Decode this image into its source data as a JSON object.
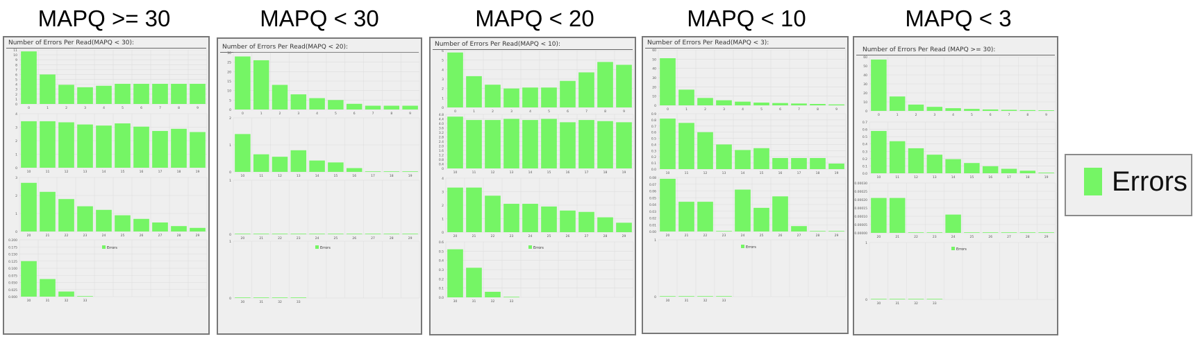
{
  "colors": {
    "bar": "#75f565",
    "grid": "#dcdcdc",
    "panel_bg": "#efefef",
    "axis_text": "#555555"
  },
  "column_titles": [
    "MAPQ >= 30",
    "MAPQ < 30",
    "MAPQ < 20",
    "MAPQ < 10",
    "MAPQ < 3"
  ],
  "outer_legend": {
    "label": "Errors"
  },
  "chart_data": [
    {
      "type": "bar",
      "title": "Number of Errors Per Read(MAPQ < 30):",
      "legend": "Errors",
      "rows": [
        {
          "categories": [
            "0",
            "1",
            "2",
            "3",
            "4",
            "5",
            "6",
            "7",
            "8",
            "9"
          ],
          "values": [
            10.7,
            6,
            3.9,
            3.4,
            3.7,
            4.1,
            4.1,
            4.1,
            4.1,
            4.1
          ],
          "ylim": [
            0,
            11
          ],
          "yticks": [
            "0",
            "1",
            "2",
            "3",
            "4",
            "5",
            "6",
            "7",
            "8",
            "9",
            "10",
            "11"
          ]
        },
        {
          "categories": [
            "10",
            "11",
            "12",
            "13",
            "14",
            "15",
            "16",
            "17",
            "18",
            "19"
          ],
          "values": [
            4.3,
            4.3,
            4.2,
            4.0,
            3.9,
            4.1,
            3.8,
            3.4,
            3.6,
            3.3
          ],
          "ylim": [
            0,
            5
          ],
          "yticks": [
            "0",
            "1",
            "2",
            "3",
            "4"
          ]
        },
        {
          "categories": [
            "20",
            "21",
            "22",
            "23",
            "24",
            "25",
            "26",
            "27",
            "28",
            "29"
          ],
          "values": [
            2.7,
            2.2,
            1.8,
            1.4,
            1.2,
            0.9,
            0.7,
            0.5,
            0.3,
            0.2
          ],
          "ylim": [
            0,
            3
          ],
          "yticks": [
            "0",
            "1",
            "2",
            "3"
          ]
        },
        {
          "categories": [
            "30",
            "31",
            "32",
            "33"
          ],
          "values": [
            0.125,
            0.062,
            0.018,
            0.002
          ],
          "ylim": [
            0,
            0.2
          ],
          "yticks": [
            "0.000",
            "0.025",
            "0.050",
            "0.075",
            "0.100",
            "0.125",
            "0.150",
            "0.175",
            "0.200"
          ]
        }
      ]
    },
    {
      "type": "bar",
      "title": "Number of Errors Per Read(MAPQ < 20):",
      "legend": "Errors",
      "rows": [
        {
          "categories": [
            "0",
            "1",
            "2",
            "3",
            "4",
            "5",
            "6",
            "7",
            "8",
            "9"
          ],
          "values": [
            28,
            26,
            13,
            8,
            6,
            5,
            3,
            2,
            2,
            2
          ],
          "ylim": [
            0,
            30
          ],
          "yticks": [
            "0",
            "5",
            "10",
            "15",
            "20",
            "25",
            "30"
          ]
        },
        {
          "categories": [
            "10",
            "11",
            "12",
            "13",
            "14",
            "15",
            "16",
            "17",
            "18",
            "19"
          ],
          "values": [
            1.4,
            0.65,
            0.56,
            0.8,
            0.42,
            0.35,
            0.14,
            0.01,
            0.01,
            0.01
          ],
          "ylim": [
            0,
            2
          ],
          "yticks": [
            "0",
            "1",
            "2"
          ]
        },
        {
          "categories": [
            "20",
            "21",
            "22",
            "23",
            "24",
            "25",
            "26",
            "27",
            "28",
            "29"
          ],
          "values": [
            0,
            0,
            0,
            0,
            0,
            0,
            0,
            0,
            0,
            0
          ],
          "ylim": [
            0,
            1
          ],
          "yticks": [
            "0",
            "1"
          ]
        },
        {
          "categories": [
            "30",
            "31",
            "32",
            "33"
          ],
          "values": [
            0,
            0,
            0,
            0
          ],
          "ylim": [
            0,
            1
          ],
          "yticks": [
            "0",
            "1"
          ]
        }
      ]
    },
    {
      "type": "bar",
      "title": "Number of Errors Per Read(MAPQ < 10):",
      "legend": "Errors",
      "rows": [
        {
          "categories": [
            "0",
            "1",
            "2",
            "3",
            "4",
            "5",
            "6",
            "7",
            "8",
            "9"
          ],
          "values": [
            5.8,
            3.3,
            2.4,
            2.0,
            2.1,
            2.1,
            2.8,
            3.7,
            4.8,
            4.5
          ],
          "ylim": [
            0,
            6
          ],
          "yticks": [
            "0",
            "1",
            "2",
            "3",
            "4",
            "5",
            "6"
          ]
        },
        {
          "categories": [
            "10",
            "11",
            "12",
            "13",
            "14",
            "15",
            "16",
            "17",
            "18",
            "19"
          ],
          "values": [
            4.6,
            4.3,
            4.3,
            4.4,
            4.3,
            4.4,
            4.1,
            4.3,
            4.2,
            4.1
          ],
          "ylim": [
            0,
            4.8
          ],
          "yticks": [
            "0",
            "0.4",
            "0.8",
            "1.2",
            "1.6",
            "2.0",
            "2.4",
            "2.8",
            "3.2",
            "3.6",
            "4.0",
            "4.4",
            "4.8"
          ]
        },
        {
          "categories": [
            "20",
            "21",
            "22",
            "23",
            "24",
            "25",
            "26",
            "27",
            "28",
            "29"
          ],
          "values": [
            3.3,
            3.3,
            2.7,
            2.1,
            2.1,
            1.9,
            1.6,
            1.5,
            1.1,
            0.7
          ],
          "ylim": [
            0,
            4
          ],
          "yticks": [
            "0",
            "1",
            "2",
            "3",
            "4"
          ]
        },
        {
          "categories": [
            "30",
            "31",
            "32",
            "33"
          ],
          "values": [
            0.52,
            0.32,
            0.06,
            0.005
          ],
          "ylim": [
            0,
            0.6
          ],
          "yticks": [
            "0.0",
            "0.1",
            "0.2",
            "0.3",
            "0.4",
            "0.5",
            "0.6"
          ]
        }
      ]
    },
    {
      "type": "bar",
      "title": "Number of Errors Per Read(MAPQ < 3):",
      "legend": "Errors",
      "rows": [
        {
          "categories": [
            "0",
            "1",
            "2",
            "3",
            "4",
            "5",
            "6",
            "7",
            "8",
            "9"
          ],
          "values": [
            51,
            17,
            8,
            5.5,
            4,
            3,
            2.5,
            2,
            1.5,
            1
          ],
          "ylim": [
            0,
            60
          ],
          "yticks": [
            "0",
            "10",
            "20",
            "30",
            "40",
            "50",
            "60"
          ]
        },
        {
          "categories": [
            "10",
            "11",
            "12",
            "13",
            "14",
            "15",
            "16",
            "17",
            "18",
            "19"
          ],
          "values": [
            0.82,
            0.75,
            0.6,
            0.4,
            0.31,
            0.34,
            0.18,
            0.18,
            0.18,
            0.09
          ],
          "ylim": [
            0,
            0.9
          ],
          "yticks": [
            "0.0",
            "0.1",
            "0.2",
            "0.3",
            "0.4",
            "0.5",
            "0.6",
            "0.7",
            "0.8",
            "0.9"
          ]
        },
        {
          "categories": [
            "20",
            "21",
            "22",
            "23",
            "24",
            "25",
            "26",
            "27",
            "28",
            "29"
          ],
          "values": [
            0.078,
            0.044,
            0.044,
            0.0005,
            0.062,
            0.035,
            0.052,
            0.008,
            0.0005,
            0.0005
          ],
          "ylim": [
            0,
            0.08
          ],
          "yticks": [
            "0.00",
            "0.01",
            "0.02",
            "0.03",
            "0.04",
            "0.05",
            "0.06",
            "0.07",
            "0.08"
          ]
        },
        {
          "categories": [
            "30",
            "31",
            "32",
            "33"
          ],
          "values": [
            0,
            0,
            0,
            0
          ],
          "ylim": [
            0,
            1
          ],
          "yticks": [
            "0",
            "1"
          ]
        }
      ]
    },
    {
      "type": "bar",
      "title": "Number of Errors Per Read (MAPQ >= 30):",
      "legend": "Errors",
      "rows": [
        {
          "categories": [
            "0",
            "1",
            "2",
            "3",
            "4",
            "5",
            "6",
            "7",
            "8",
            "9"
          ],
          "values": [
            57,
            16,
            7,
            4.5,
            3,
            2.2,
            1.6,
            1.2,
            0.9,
            0.7
          ],
          "ylim": [
            0,
            60
          ],
          "yticks": [
            "0",
            "10",
            "20",
            "30",
            "40",
            "50",
            "60"
          ]
        },
        {
          "categories": [
            "10",
            "11",
            "12",
            "13",
            "14",
            "15",
            "16",
            "17",
            "18",
            "19"
          ],
          "values": [
            0.66,
            0.5,
            0.39,
            0.29,
            0.22,
            0.16,
            0.11,
            0.07,
            0.04,
            0.01
          ],
          "ylim": [
            0,
            0.8
          ],
          "yticks": [
            "0.0",
            "0.1",
            "0.2",
            "0.3",
            "0.4",
            "0.5",
            "0.6",
            "0.7"
          ]
        },
        {
          "categories": [
            "20",
            "21",
            "22",
            "23",
            "24",
            "25",
            "26",
            "27",
            "28",
            "29"
          ],
          "values": [
            0.00021,
            0.00021,
            1e-06,
            1e-06,
            0.00011,
            1e-06,
            1e-06,
            1e-06,
            1e-06,
            1e-06
          ],
          "ylim": [
            0,
            0.0003
          ],
          "yticks": [
            "0.00000",
            "0.00005",
            "0.00010",
            "0.00015",
            "0.00020",
            "0.00025",
            "0.00030"
          ]
        },
        {
          "categories": [
            "30",
            "31",
            "32",
            "33"
          ],
          "values": [
            0,
            0,
            0,
            0
          ],
          "ylim": [
            0,
            1
          ],
          "yticks": [
            "0",
            "1"
          ]
        }
      ]
    }
  ]
}
